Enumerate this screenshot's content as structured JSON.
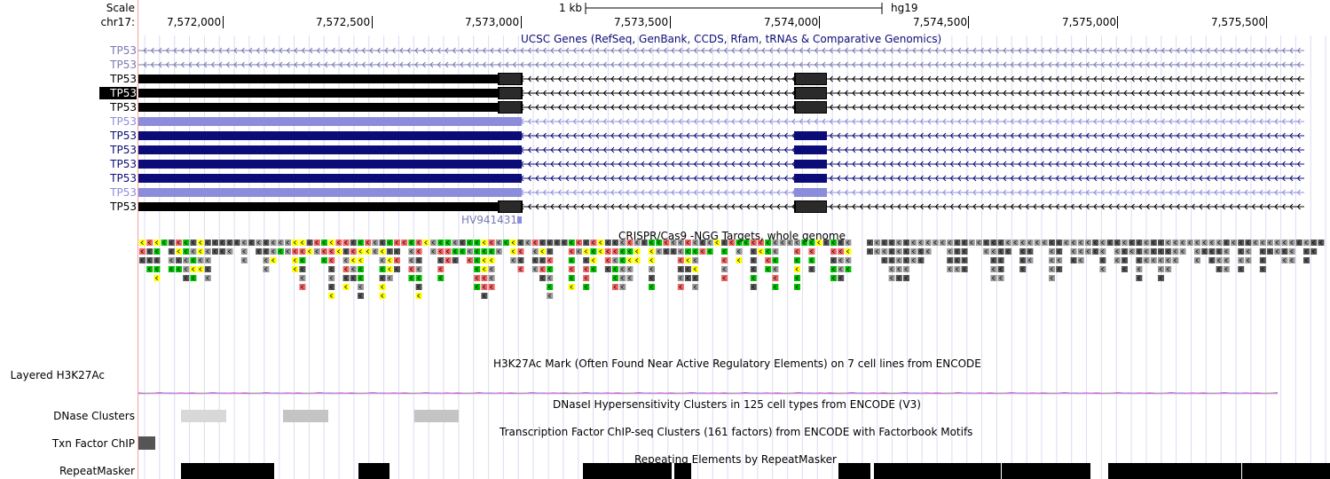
{
  "browser": {
    "assembly": "hg19",
    "scale_label": "Scale",
    "scale_bar_text": "1 kb",
    "chrom_label": "chr17:",
    "ticks": [
      "7,572,000",
      "7,572,500",
      "7,573,000",
      "7,573,500",
      "7,574,000",
      "7,574,500",
      "7,575,000",
      "7,575,500"
    ]
  },
  "tracks": {
    "ucsc_genes": {
      "title": "UCSC Genes (RefSeq, GenBank, CCDS, Rfam, tRNAs & Comparative Genomics)",
      "rows": [
        {
          "label": "TP53",
          "style": "faint",
          "highlighted": false
        },
        {
          "label": "TP53",
          "style": "faint",
          "highlighted": false
        },
        {
          "label": "TP53",
          "style": "black",
          "highlighted": false
        },
        {
          "label": "TP53",
          "style": "black",
          "highlighted": true
        },
        {
          "label": "TP53",
          "style": "black",
          "highlighted": false
        },
        {
          "label": "TP53",
          "style": "light",
          "highlighted": false
        },
        {
          "label": "TP53",
          "style": "navy",
          "highlighted": false
        },
        {
          "label": "TP53",
          "style": "navy",
          "highlighted": false
        },
        {
          "label": "TP53",
          "style": "navy",
          "highlighted": false
        },
        {
          "label": "TP53",
          "style": "navy",
          "highlighted": false
        },
        {
          "label": "TP53",
          "style": "light",
          "highlighted": false
        },
        {
          "label": "TP53",
          "style": "black",
          "highlighted": false
        }
      ],
      "extra_item": "HV941431"
    },
    "crispr": {
      "title": "CRISPR/Cas9 -NGG Targets, whole genome",
      "colors": {
        "green": "#00c000",
        "yellow": "#ffff00",
        "red": "#f06464",
        "grey": "#999999",
        "dark": "#555555"
      }
    },
    "h3k27ac": {
      "side_label": "Layered H3K27Ac",
      "title": "H3K27Ac Mark (Often Found Near Active Regulatory Elements) on 7 cell lines from ENCODE"
    },
    "dnase": {
      "side_label": "DNase Clusters",
      "title": "DNaseI Hypersensitivity Clusters in 125 cell types from ENCODE (V3)"
    },
    "txn_factor": {
      "side_label": "Txn Factor ChIP",
      "title": "Transcription Factor ChIP-seq Clusters (161 factors) from ENCODE with Factorbook Motifs"
    },
    "repeatmasker": {
      "side_label": "RepeatMasker",
      "title": "Repeating Elements by RepeatMasker"
    }
  },
  "colors": {
    "navy": "#0c0c78",
    "light": "#8c8cdc",
    "faint": "#7878b4",
    "guide": "#dcdcf0",
    "red_line": "#f4a0a0"
  }
}
